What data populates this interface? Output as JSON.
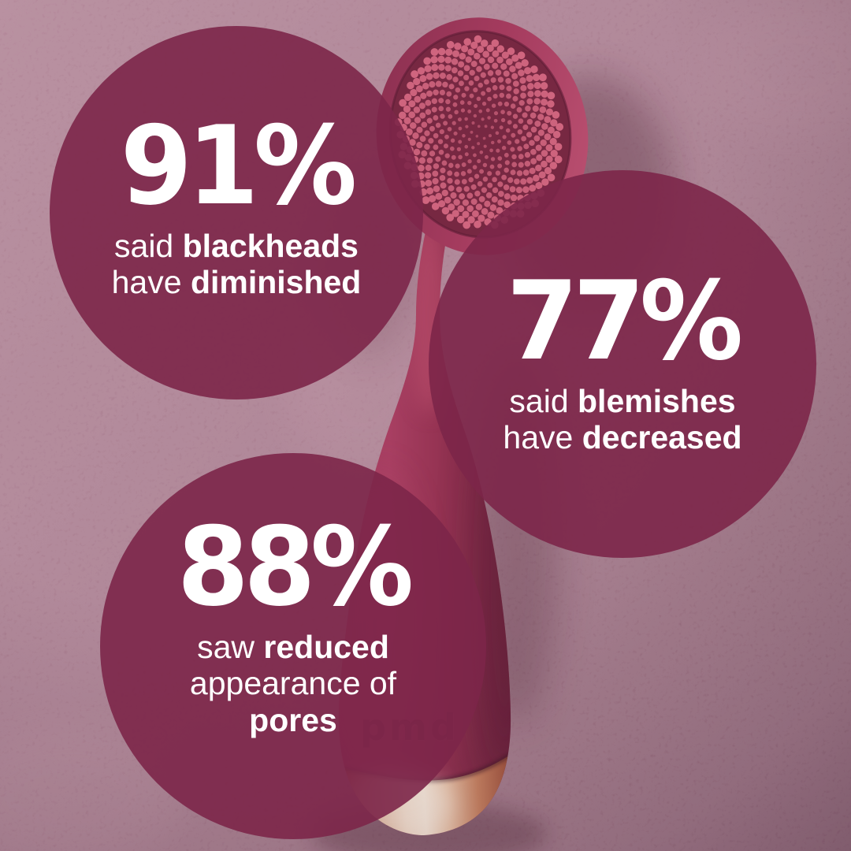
{
  "brand": {
    "logo_text": "pmd"
  },
  "stats": [
    {
      "id": "blackheads",
      "value": "91%",
      "lines": [
        [
          {
            "text": "said ",
            "bold": false
          },
          {
            "text": "blackheads",
            "bold": true
          }
        ],
        [
          {
            "text": "have ",
            "bold": false
          },
          {
            "text": "diminished",
            "bold": true
          }
        ]
      ]
    },
    {
      "id": "blemishes",
      "value": "77%",
      "lines": [
        [
          {
            "text": "said ",
            "bold": false
          },
          {
            "text": "blemishes",
            "bold": true
          }
        ],
        [
          {
            "text": "have ",
            "bold": false
          },
          {
            "text": "decreased",
            "bold": true
          }
        ]
      ]
    },
    {
      "id": "pores",
      "value": "88%",
      "lines": [
        [
          {
            "text": "saw ",
            "bold": false
          },
          {
            "text": "reduced",
            "bold": true
          }
        ],
        [
          {
            "text": "appearance of",
            "bold": false
          }
        ],
        [
          {
            "text": "pores",
            "bold": true
          }
        ]
      ]
    }
  ],
  "colors": {
    "background_top_left": "#AC7E90",
    "background_mid": "#A17386",
    "background_bottom_right": "#8B6074",
    "stat_circle_fill": "#7C2649",
    "stat_text": "#FFFFFF",
    "device_body_light": "#A83F62",
    "device_body_dark": "#722440",
    "brush_pad": "#772842",
    "bristle_inner": "#AA4A64",
    "bristle_outer": "#D0657F",
    "metal_highlight": "#F6E6D6",
    "metal_copper": "#A65A43",
    "logo_emboss": "#5E1B36"
  }
}
